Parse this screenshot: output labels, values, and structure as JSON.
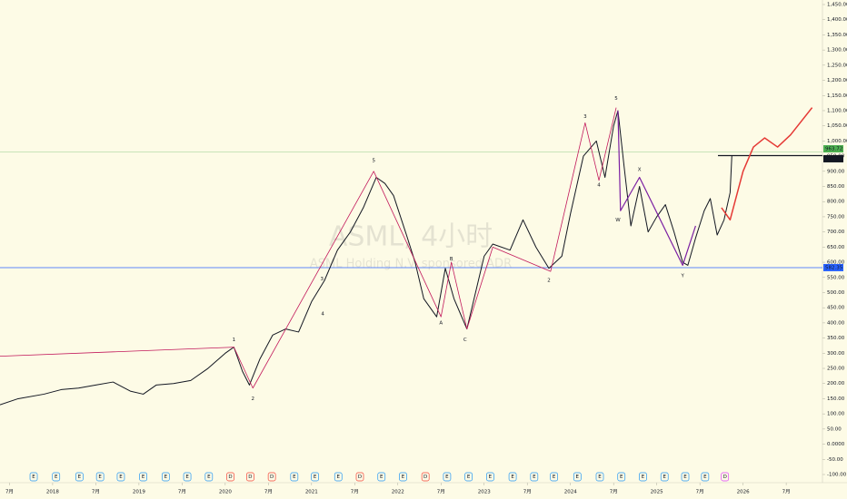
{
  "chart_data": {
    "type": "line",
    "watermark": "ASML, 4小时",
    "watermark_subtitle": "ASML Holding N.V. sponsored ADR",
    "xlim": [
      2017.39,
      2026.92
    ],
    "ylim": [
      -100,
      1450
    ],
    "xticks": [
      {
        "value": 2017.5,
        "label": "7月"
      },
      2018,
      {
        "value": 2018.5,
        "label": "7月"
      },
      2019,
      {
        "value": 2019.5,
        "label": "7月"
      },
      2020,
      {
        "value": 2020.5,
        "label": "7月"
      },
      2021,
      {
        "value": 2021.5,
        "label": "7月"
      },
      2022,
      {
        "value": 2022.5,
        "label": "7月"
      },
      2023,
      {
        "value": 2023.5,
        "label": "7月"
      },
      2024,
      {
        "value": 2024.5,
        "label": "7月"
      },
      2025,
      {
        "value": 2025.5,
        "label": "7月"
      },
      2026,
      {
        "value": 2026.5,
        "label": "7月"
      }
    ],
    "yticks": [
      {
        "value": 1450,
        "label": "1,450.00"
      },
      {
        "value": 1400,
        "label": "1,400.00"
      },
      {
        "value": 1350,
        "label": "1,350.00"
      },
      {
        "value": 1300,
        "label": "1,300.00"
      },
      {
        "value": 1250,
        "label": "1,250.00"
      },
      {
        "value": 1200,
        "label": "1,200.00"
      },
      {
        "value": 1150,
        "label": "1,150.00"
      },
      {
        "value": 1100,
        "label": "1,100.00"
      },
      {
        "value": 1050,
        "label": "1,050.00"
      },
      {
        "value": 1000,
        "label": "1,000.00"
      },
      {
        "value": 950,
        "label": "950.00"
      },
      {
        "value": 900,
        "label": "900.00"
      },
      {
        "value": 850,
        "label": "850.00"
      },
      {
        "value": 800,
        "label": "800.00"
      },
      {
        "value": 750,
        "label": "750.00"
      },
      {
        "value": 700,
        "label": "700.00"
      },
      {
        "value": 650,
        "label": "650.00"
      },
      {
        "value": 600,
        "label": "600.00"
      },
      {
        "value": 550,
        "label": "550.00"
      },
      {
        "value": 500,
        "label": "500.00"
      },
      {
        "value": 450,
        "label": "450.00"
      },
      {
        "value": 400,
        "label": "400.00"
      },
      {
        "value": 350,
        "label": "350.00"
      },
      {
        "value": 300,
        "label": "300.00"
      },
      {
        "value": 250,
        "label": "250.00"
      },
      {
        "value": 200,
        "label": "200.00"
      },
      {
        "value": 150,
        "label": "150.00"
      },
      {
        "value": 100,
        "label": "100.00"
      },
      {
        "value": 50,
        "label": "50.00"
      },
      {
        "value": 0,
        "label": "0.0000"
      },
      {
        "value": -50,
        "label": "-50.00"
      },
      {
        "value": -100,
        "label": "-100.00"
      }
    ],
    "series": [
      {
        "color": "#131722",
        "width": 1,
        "x": [
          2017.39,
          2017.6,
          2017.9,
          2018.1,
          2018.3,
          2018.5,
          2018.7,
          2018.9,
          2019.05,
          2019.2,
          2019.4,
          2019.6,
          2019.8,
          2020.0,
          2020.1,
          2020.2,
          2020.28,
          2020.4,
          2020.55,
          2020.7,
          2020.85,
          2021.0,
          2021.15,
          2021.3,
          2021.45,
          2021.6,
          2021.75,
          2021.85,
          2021.95,
          2022.1,
          2022.2,
          2022.3,
          2022.45,
          2022.55,
          2022.65,
          2022.8,
          2022.9,
          2023.0,
          2023.1,
          2023.3,
          2023.45,
          2023.6,
          2023.75,
          2023.9,
          2024.0,
          2024.15,
          2024.3,
          2024.4,
          2024.5,
          2024.55,
          2024.62,
          2024.7,
          2024.8,
          2024.9,
          2025.0,
          2025.1,
          2025.2,
          2025.3,
          2025.36,
          2025.45,
          2025.55,
          2025.62,
          2025.7,
          2025.78,
          2025.85,
          2025.87
        ],
        "values": [
          130,
          150,
          165,
          180,
          185,
          195,
          205,
          175,
          165,
          195,
          200,
          210,
          250,
          300,
          320,
          240,
          195,
          280,
          360,
          380,
          370,
          470,
          540,
          640,
          700,
          780,
          880,
          860,
          820,
          690,
          600,
          480,
          420,
          580,
          480,
          380,
          500,
          620,
          660,
          640,
          740,
          650,
          580,
          620,
          760,
          950,
          1000,
          880,
          1050,
          1100,
          920,
          720,
          850,
          700,
          750,
          790,
          700,
          600,
          590,
          680,
          770,
          810,
          690,
          740,
          830,
          952
        ]
      },
      {
        "color": "#c2185b",
        "width": 0.8,
        "x": [
          2017.39,
          2020.1,
          2020.32,
          2021.72,
          2022.5,
          2022.62,
          2022.8,
          2023.1,
          2023.77,
          2024.17,
          2024.33,
          2024.53
        ],
        "values": [
          290,
          320,
          185,
          900,
          420,
          600,
          380,
          650,
          570,
          1060,
          870,
          1110
        ]
      },
      {
        "color": "#7b1fa2",
        "width": 1.2,
        "x": [
          2024.55,
          2024.58,
          2024.8,
          2025.3,
          2025.45
        ],
        "values": [
          1100,
          770,
          880,
          590,
          720
        ]
      },
      {
        "color": "#e53935",
        "width": 1.5,
        "x": [
          2025.75,
          2025.85,
          2026.0,
          2026.12,
          2026.25,
          2026.4,
          2026.55,
          2026.8
        ],
        "values": [
          780,
          740,
          900,
          980,
          1010,
          980,
          1020,
          1110
        ]
      }
    ],
    "levels": [
      {
        "value": 963.72,
        "color": "#4caf50"
      },
      {
        "value": 951.89,
        "color": "#131722"
      },
      {
        "value": 582.35,
        "color": "#2962ff"
      }
    ],
    "annotations": [
      {
        "text": "1",
        "x": 2020.1,
        "y": 345,
        "color": "#131722"
      },
      {
        "text": "2",
        "x": 2020.32,
        "y": 150,
        "color": "#131722"
      },
      {
        "text": "3",
        "x": 2021.12,
        "y": 545,
        "color": "#131722"
      },
      {
        "text": "4",
        "x": 2021.13,
        "y": 430,
        "color": "#131722"
      },
      {
        "text": "5",
        "x": 2021.72,
        "y": 935,
        "color": "#131722"
      },
      {
        "text": "A",
        "x": 2022.5,
        "y": 400,
        "color": "#c2185b"
      },
      {
        "text": "B",
        "x": 2022.62,
        "y": 610,
        "color": "#c2185b"
      },
      {
        "text": "C",
        "x": 2022.78,
        "y": 345,
        "color": "#c2185b"
      },
      {
        "text": "2",
        "x": 2023.75,
        "y": 540,
        "color": "#131722"
      },
      {
        "text": "3",
        "x": 2024.17,
        "y": 1080,
        "color": "#131722"
      },
      {
        "text": "4",
        "x": 2024.33,
        "y": 855,
        "color": "#131722"
      },
      {
        "text": "5",
        "x": 2024.53,
        "y": 1140,
        "color": "#131722"
      },
      {
        "text": "W",
        "x": 2024.55,
        "y": 740,
        "color": "#7b1fa2"
      },
      {
        "text": "X",
        "x": 2024.8,
        "y": 905,
        "color": "#7b1fa2"
      },
      {
        "text": "Y",
        "x": 2025.3,
        "y": 555,
        "color": "#7b1fa2"
      }
    ],
    "events": [
      {
        "label": "E",
        "x": 2017.78,
        "color": "#2196f3"
      },
      {
        "label": "E",
        "x": 2018.04,
        "color": "#2196f3"
      },
      {
        "label": "E",
        "x": 2018.31,
        "color": "#2196f3"
      },
      {
        "label": "E",
        "x": 2018.55,
        "color": "#2196f3"
      },
      {
        "label": "E",
        "x": 2018.79,
        "color": "#2196f3"
      },
      {
        "label": "E",
        "x": 2019.05,
        "color": "#2196f3"
      },
      {
        "label": "E",
        "x": 2019.31,
        "color": "#2196f3"
      },
      {
        "label": "E",
        "x": 2019.56,
        "color": "#2196f3"
      },
      {
        "label": "E",
        "x": 2019.81,
        "color": "#2196f3"
      },
      {
        "label": "D",
        "x": 2020.06,
        "color": "#f44336"
      },
      {
        "label": "D",
        "x": 2020.29,
        "color": "#f44336"
      },
      {
        "label": "D",
        "x": 2020.54,
        "color": "#f44336"
      },
      {
        "label": "E",
        "x": 2020.8,
        "color": "#2196f3"
      },
      {
        "label": "E",
        "x": 2021.04,
        "color": "#2196f3"
      },
      {
        "label": "E",
        "x": 2021.31,
        "color": "#2196f3"
      },
      {
        "label": "D",
        "x": 2021.56,
        "color": "#f44336"
      },
      {
        "label": "E",
        "x": 2021.81,
        "color": "#2196f3"
      },
      {
        "label": "E",
        "x": 2022.06,
        "color": "#2196f3"
      },
      {
        "label": "D",
        "x": 2022.32,
        "color": "#f44336"
      },
      {
        "label": "E",
        "x": 2022.57,
        "color": "#2196f3"
      },
      {
        "label": "E",
        "x": 2022.82,
        "color": "#2196f3"
      },
      {
        "label": "E",
        "x": 2023.07,
        "color": "#2196f3"
      },
      {
        "label": "E",
        "x": 2023.33,
        "color": "#2196f3"
      },
      {
        "label": "E",
        "x": 2023.58,
        "color": "#2196f3"
      },
      {
        "label": "E",
        "x": 2023.81,
        "color": "#2196f3"
      },
      {
        "label": "E",
        "x": 2024.08,
        "color": "#2196f3"
      },
      {
        "label": "E",
        "x": 2024.34,
        "color": "#2196f3"
      },
      {
        "label": "E",
        "x": 2024.59,
        "color": "#2196f3"
      },
      {
        "label": "E",
        "x": 2024.84,
        "color": "#2196f3"
      },
      {
        "label": "E",
        "x": 2025.09,
        "color": "#2196f3"
      },
      {
        "label": "E",
        "x": 2025.33,
        "color": "#2196f3"
      },
      {
        "label": "E",
        "x": 2025.56,
        "color": "#2196f3"
      },
      {
        "label": "D",
        "x": 2025.79,
        "color": "#e040fb"
      }
    ]
  }
}
